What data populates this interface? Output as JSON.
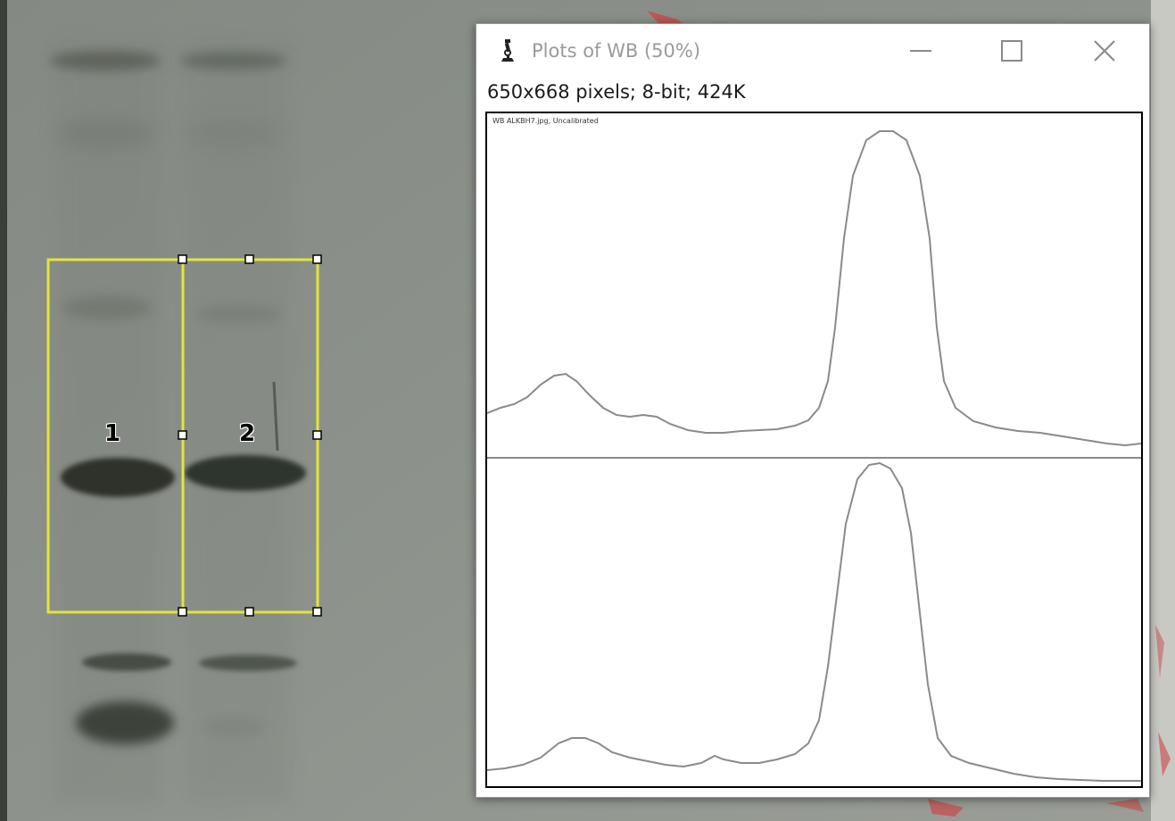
{
  "window": {
    "title": "Plots of WB (50%)",
    "info": "650x668 pixels; 8-bit; 424K",
    "plot_caption": "WB ALKBH7.jpg, Uncalibrated",
    "icons": {
      "app": "microscope-icon",
      "minimize": "minimize-icon",
      "maximize": "maximize-icon",
      "close": "close-icon"
    }
  },
  "blot": {
    "lanes": [
      {
        "number": "1"
      },
      {
        "number": "2"
      }
    ],
    "roi_color": "#e4e43a"
  },
  "colors": {
    "background": "#8b918b",
    "band": "#2d332b",
    "plot_line": "#8a8a8a",
    "title_text": "#9a9a9a"
  }
}
